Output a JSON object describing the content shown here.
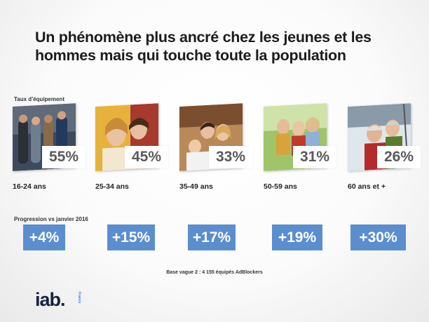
{
  "title": "Un phénomène plus ancré chez les jeunes et les hommes mais qui touche toute la population",
  "equipment_label": "Taux d'équipement",
  "progression_label": "Progression vs janvier 2016",
  "groups": [
    {
      "age": "16-24 ans",
      "rate": "55%",
      "progression": "+4%"
    },
    {
      "age": "25-34 ans",
      "rate": "45%",
      "progression": "+15%"
    },
    {
      "age": "35-49 ans",
      "rate": "33%",
      "progression": "+17%"
    },
    {
      "age": "50-59 ans",
      "rate": "31%",
      "progression": "+19%"
    },
    {
      "age": "60 ans et +",
      "rate": "26%",
      "progression": "+30%"
    }
  ],
  "base_note": "Base vague 2 : 4 155 équipés AdBlockers",
  "logo": {
    "text": "iab.",
    "sub": "France"
  },
  "colors": {
    "progression_box": "#5b8ece",
    "percent_text": "#5a5a5a",
    "logo": "#16233f"
  }
}
